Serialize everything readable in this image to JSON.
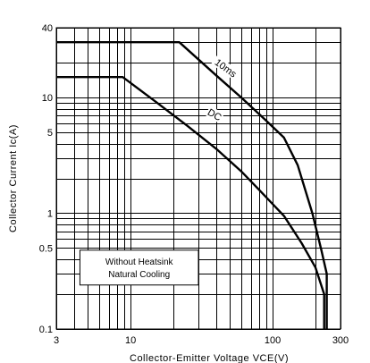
{
  "chart_data": {
    "type": "line",
    "xlabel": "Collector-Emitter Voltage VCE(V)",
    "ylabel": "Collector Current Ic(A)",
    "xscale": "log",
    "yscale": "log",
    "xlim": [
      3,
      300
    ],
    "ylim": [
      0.1,
      40
    ],
    "grid": true,
    "x_ticks": [
      3,
      10,
      100,
      300
    ],
    "x_tick_labels": [
      "3",
      "10",
      "100",
      "300"
    ],
    "y_ticks": [
      0.1,
      0.5,
      1,
      5,
      10,
      40
    ],
    "y_tick_labels": [
      "0.1",
      "0.5",
      "1",
      "5",
      "10",
      "40"
    ],
    "x_grid": [
      3,
      4,
      5,
      6,
      7,
      8,
      9,
      10,
      20,
      30,
      40,
      50,
      60,
      70,
      80,
      90,
      100,
      200,
      300
    ],
    "y_grid": [
      0.1,
      0.2,
      0.3,
      0.4,
      0.5,
      0.6,
      0.7,
      0.8,
      0.9,
      1,
      2,
      3,
      4,
      5,
      6,
      7,
      8,
      9,
      10,
      20,
      30,
      40
    ],
    "series": [
      {
        "name": "10ms",
        "x": [
          3,
          22,
          40,
          60,
          90,
          120,
          150,
          190,
          220,
          240,
          240
        ],
        "y": [
          30,
          30,
          15.5,
          10,
          6.3,
          4.5,
          2.6,
          1.0,
          0.48,
          0.3,
          0.1
        ]
      },
      {
        "name": "DC",
        "x": [
          3,
          8.8,
          15,
          25,
          40,
          60,
          80,
          120,
          160,
          200,
          230,
          230
        ],
        "y": [
          15,
          15,
          9.2,
          5.7,
          3.6,
          2.3,
          1.6,
          0.95,
          0.55,
          0.34,
          0.2,
          0.1
        ]
      }
    ],
    "annotations": [
      {
        "text": "10ms",
        "x": 46,
        "y": 17.5,
        "angle": 36
      },
      {
        "text": "DC",
        "x": 38.5,
        "y": 6.9,
        "angle": 30
      }
    ],
    "note_lines": [
      "Without Heatsink",
      "Natural Cooling"
    ]
  }
}
